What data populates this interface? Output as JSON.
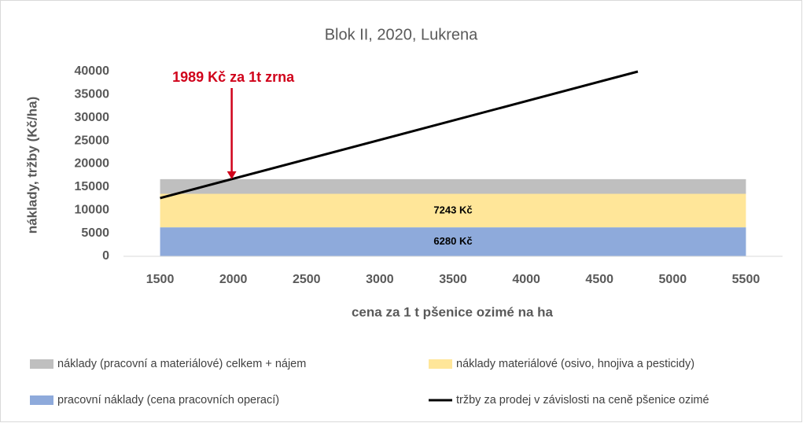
{
  "chart_data": {
    "type": "area",
    "title": "Blok II, 2020, Lukrena",
    "x_label": "cena za 1 t pšenice ozimé na ha",
    "y_label": "náklady, tržby (Kč/ha)",
    "x": [
      1500,
      5500
    ],
    "xlim": [
      1250,
      5750
    ],
    "xticks": [
      1500,
      2000,
      2500,
      3000,
      3500,
      4000,
      4500,
      5000,
      5500
    ],
    "ylim": [
      0,
      40000
    ],
    "yticks": [
      0,
      5000,
      10000,
      15000,
      20000,
      25000,
      30000,
      35000,
      40000
    ],
    "grid": false,
    "legend": "bottom",
    "stacked": true,
    "series": [
      {
        "name": "náklady (pracovní a materiálové) celkem + nájem",
        "type": "area",
        "color": "#bfbfbf",
        "values": [
          3185,
          3185
        ]
      },
      {
        "name": "náklady materiálové (osivo, hnojiva a pesticidy)",
        "type": "area",
        "color": "#ffe699",
        "values": [
          7243,
          7243
        ],
        "value_labels": [
          "7243 Kč",
          "7243 Kč"
        ]
      },
      {
        "name": "pracovní náklady (cena pracovních operací)",
        "type": "area",
        "color": "#8eaadb",
        "values": [
          6280,
          6280
        ],
        "value_labels": [
          "6280 Kč",
          "6280 Kč"
        ]
      },
      {
        "name": "tržby za prodej v závislosti na ceně pšenice ozimé",
        "type": "line",
        "color": "#000000",
        "x": [
          1500,
          4762
        ],
        "values": [
          12600,
          40000
        ]
      }
    ],
    "annotation": {
      "text": "1989 Kč za 1t zrna",
      "x": 1989,
      "y": 16708,
      "color": "#d0021b"
    }
  }
}
